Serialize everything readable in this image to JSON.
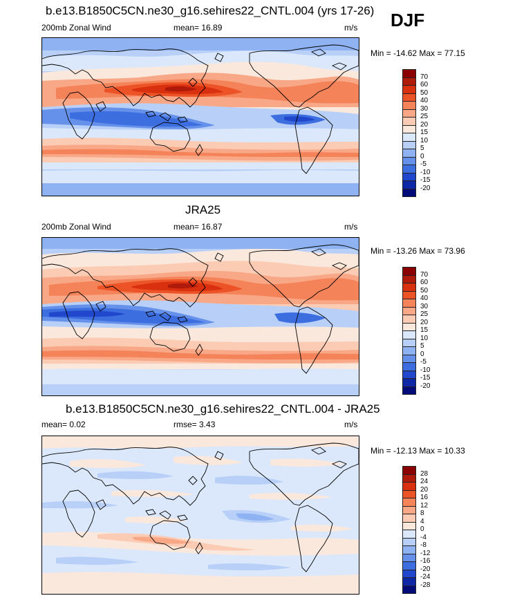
{
  "season": "DJF",
  "panels": [
    {
      "title": "b.e13.B1850C5CN.ne30_g16.sehires22_CNTL.004 (yrs 17-26)",
      "left_label": "200mb Zonal Wind",
      "center_label": "mean=  16.89",
      "units": "m/s",
      "minmax": "Min = -14.62 Max =  77.15",
      "colorbar": {
        "levels": [
          "70",
          "60",
          "50",
          "40",
          "30",
          "25",
          "20",
          "15",
          "10",
          "5",
          "0",
          "-5",
          "-10",
          "-15",
          "-20"
        ],
        "colors": [
          "#8b0000",
          "#b01a0a",
          "#d9300f",
          "#ec5326",
          "#f5835a",
          "#f9a887",
          "#fbcbb3",
          "#fbe8dc",
          "#dbe8fb",
          "#b8d0f8",
          "#8fb3f2",
          "#6691ea",
          "#3d6ee0",
          "#2148cc",
          "#0d27a6",
          "#030b78"
        ]
      }
    },
    {
      "title": "JRA25",
      "left_label": "200mb Zonal Wind",
      "center_label": "mean=  16.87",
      "units": "m/s",
      "minmax": "Min = -13.26 Max =  73.96",
      "colorbar": {
        "levels": [
          "70",
          "60",
          "50",
          "40",
          "30",
          "25",
          "20",
          "15",
          "10",
          "5",
          "0",
          "-5",
          "-10",
          "-15",
          "-20"
        ],
        "colors": [
          "#8b0000",
          "#b01a0a",
          "#d9300f",
          "#ec5326",
          "#f5835a",
          "#f9a887",
          "#fbcbb3",
          "#fbe8dc",
          "#dbe8fb",
          "#b8d0f8",
          "#8fb3f2",
          "#6691ea",
          "#3d6ee0",
          "#2148cc",
          "#0d27a6",
          "#030b78"
        ]
      }
    },
    {
      "title": "b.e13.B1850C5CN.ne30_g16.sehires22_CNTL.004 - JRA25",
      "left_label": "mean=   0.02",
      "center_label": "rmse=   3.43",
      "units": "m/s",
      "minmax": "Min = -12.13 Max =  10.33",
      "colorbar": {
        "levels": [
          "28",
          "24",
          "20",
          "16",
          "12",
          "8",
          "4",
          "0",
          "-4",
          "-8",
          "-12",
          "-16",
          "-20",
          "-24",
          "-28"
        ],
        "colors": [
          "#8b0000",
          "#b01a0a",
          "#d9300f",
          "#ec5326",
          "#f5835a",
          "#f9a887",
          "#fbcbb3",
          "#fbe8dc",
          "#dbe8fb",
          "#b8d0f8",
          "#8fb3f2",
          "#6691ea",
          "#3d6ee0",
          "#2148cc",
          "#0d27a6",
          "#030b78"
        ]
      }
    }
  ]
}
